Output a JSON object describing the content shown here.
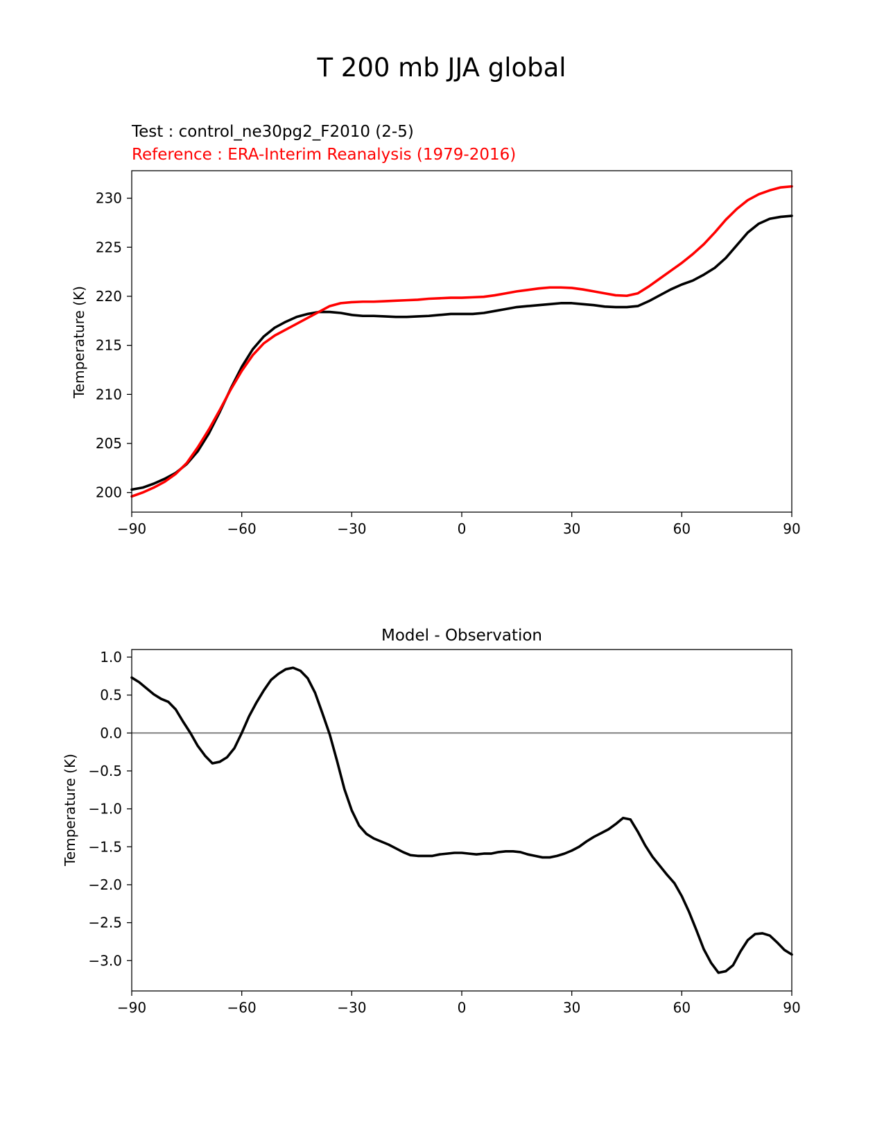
{
  "figure": {
    "title": "T 200 mb JJA global"
  },
  "chart_data": [
    {
      "type": "line",
      "test_label": "Test : control_ne30pg2_F2010 (2-5)",
      "reference_label": "Reference : ERA-Interim Reanalysis (1979-2016)",
      "xlabel": "",
      "ylabel": "Temperature (K)",
      "xlim": [
        -90,
        90
      ],
      "ylim": [
        198,
        232.8
      ],
      "xticks": [
        -90,
        -60,
        -30,
        0,
        30,
        60,
        90
      ],
      "xtick_labels": [
        "−90",
        "−60",
        "−30",
        "0",
        "30",
        "60",
        "90"
      ],
      "yticks": [
        200,
        205,
        210,
        215,
        220,
        225,
        230
      ],
      "ytick_labels": [
        "200",
        "205",
        "210",
        "215",
        "220",
        "225",
        "230"
      ],
      "series": [
        {
          "name": "Test",
          "color": "#000000",
          "x": [
            -90,
            -87,
            -84,
            -81,
            -78,
            -75,
            -72,
            -69,
            -66,
            -63,
            -60,
            -57,
            -54,
            -51,
            -48,
            -45,
            -42,
            -39,
            -36,
            -33,
            -30,
            -27,
            -24,
            -21,
            -18,
            -15,
            -12,
            -9,
            -6,
            -3,
            0,
            3,
            6,
            9,
            12,
            15,
            18,
            21,
            24,
            27,
            30,
            33,
            36,
            39,
            42,
            45,
            48,
            51,
            54,
            57,
            60,
            63,
            66,
            69,
            72,
            75,
            78,
            81,
            84,
            87,
            90
          ],
          "values": [
            200.3,
            200.5,
            200.9,
            201.4,
            202.0,
            202.9,
            204.2,
            206.0,
            208.2,
            210.6,
            212.8,
            214.6,
            215.9,
            216.8,
            217.4,
            217.9,
            218.2,
            218.4,
            218.4,
            218.3,
            218.1,
            218.0,
            218.0,
            217.95,
            217.9,
            217.9,
            217.95,
            218.0,
            218.1,
            218.2,
            218.2,
            218.2,
            218.3,
            218.5,
            218.7,
            218.9,
            219.0,
            219.1,
            219.2,
            219.3,
            219.3,
            219.2,
            219.1,
            218.95,
            218.9,
            218.9,
            219.0,
            219.5,
            220.1,
            220.7,
            221.2,
            221.6,
            222.2,
            222.9,
            223.9,
            225.2,
            226.5,
            227.4,
            227.9,
            228.1,
            228.2
          ]
        },
        {
          "name": "Reference",
          "color": "#ff0000",
          "x": [
            -90,
            -87,
            -84,
            -81,
            -78,
            -75,
            -72,
            -69,
            -66,
            -63,
            -60,
            -57,
            -54,
            -51,
            -48,
            -45,
            -42,
            -39,
            -36,
            -33,
            -30,
            -27,
            -24,
            -21,
            -18,
            -15,
            -12,
            -9,
            -6,
            -3,
            0,
            3,
            6,
            9,
            12,
            15,
            18,
            21,
            24,
            27,
            30,
            33,
            36,
            39,
            42,
            45,
            48,
            51,
            54,
            57,
            60,
            63,
            66,
            69,
            72,
            75,
            78,
            81,
            84,
            87,
            90
          ],
          "values": [
            199.6,
            200.0,
            200.5,
            201.1,
            201.9,
            203.0,
            204.6,
            206.4,
            208.4,
            210.5,
            212.4,
            214.0,
            215.2,
            216.0,
            216.6,
            217.2,
            217.8,
            218.4,
            219.0,
            219.3,
            219.4,
            219.45,
            219.45,
            219.5,
            219.55,
            219.6,
            219.65,
            219.75,
            219.8,
            219.85,
            219.85,
            219.9,
            219.95,
            220.1,
            220.3,
            220.5,
            220.65,
            220.8,
            220.9,
            220.9,
            220.85,
            220.7,
            220.5,
            220.3,
            220.1,
            220.05,
            220.3,
            221.0,
            221.8,
            222.6,
            223.4,
            224.3,
            225.3,
            226.5,
            227.8,
            228.9,
            229.8,
            230.4,
            230.8,
            231.1,
            231.2
          ]
        }
      ]
    },
    {
      "type": "line",
      "title": "Model - Observation",
      "xlabel": "",
      "ylabel": "Temperature (K)",
      "xlim": [
        -90,
        90
      ],
      "ylim": [
        -3.4,
        1.1
      ],
      "xticks": [
        -90,
        -60,
        -30,
        0,
        30,
        60,
        90
      ],
      "xtick_labels": [
        "−90",
        "−60",
        "−30",
        "0",
        "30",
        "60",
        "90"
      ],
      "yticks": [
        1.0,
        0.5,
        0.0,
        -0.5,
        -1.0,
        -1.5,
        -2.0,
        -2.5,
        -3.0
      ],
      "ytick_labels": [
        "1.0",
        "0.5",
        "0.0",
        "−0.5",
        "−1.0",
        "−1.5",
        "−2.0",
        "−2.5",
        "−3.0"
      ],
      "zero_line_color": "#808080",
      "series": [
        {
          "name": "Model - Observation",
          "color": "#000000",
          "x": [
            -90,
            -88,
            -86,
            -84,
            -82,
            -80,
            -78,
            -76,
            -74,
            -72,
            -70,
            -68,
            -66,
            -64,
            -62,
            -60,
            -58,
            -56,
            -54,
            -52,
            -50,
            -48,
            -46,
            -44,
            -42,
            -40,
            -38,
            -36,
            -34,
            -32,
            -30,
            -28,
            -26,
            -24,
            -22,
            -20,
            -18,
            -16,
            -14,
            -12,
            -10,
            -8,
            -6,
            -4,
            -2,
            0,
            2,
            4,
            6,
            8,
            10,
            12,
            14,
            16,
            18,
            20,
            22,
            24,
            26,
            28,
            30,
            32,
            34,
            36,
            38,
            40,
            42,
            44,
            46,
            48,
            50,
            52,
            54,
            56,
            58,
            60,
            62,
            64,
            66,
            68,
            70,
            72,
            74,
            76,
            78,
            80,
            82,
            84,
            86,
            88,
            90
          ],
          "values": [
            0.73,
            0.67,
            0.59,
            0.51,
            0.45,
            0.41,
            0.31,
            0.15,
            0.0,
            -0.17,
            -0.3,
            -0.4,
            -0.38,
            -0.32,
            -0.2,
            0.0,
            0.22,
            0.4,
            0.56,
            0.7,
            0.78,
            0.84,
            0.86,
            0.82,
            0.72,
            0.53,
            0.26,
            -0.02,
            -0.37,
            -0.74,
            -1.02,
            -1.22,
            -1.33,
            -1.39,
            -1.43,
            -1.47,
            -1.52,
            -1.57,
            -1.61,
            -1.62,
            -1.62,
            -1.62,
            -1.6,
            -1.59,
            -1.58,
            -1.58,
            -1.59,
            -1.6,
            -1.59,
            -1.59,
            -1.57,
            -1.56,
            -1.56,
            -1.57,
            -1.6,
            -1.62,
            -1.64,
            -1.64,
            -1.62,
            -1.59,
            -1.55,
            -1.5,
            -1.43,
            -1.37,
            -1.32,
            -1.27,
            -1.2,
            -1.12,
            -1.14,
            -1.3,
            -1.48,
            -1.63,
            -1.75,
            -1.87,
            -1.98,
            -2.15,
            -2.36,
            -2.6,
            -2.85,
            -3.03,
            -3.16,
            -3.14,
            -3.06,
            -2.88,
            -2.73,
            -2.65,
            -2.64,
            -2.67,
            -2.76,
            -2.86,
            -2.92
          ]
        }
      ]
    }
  ]
}
